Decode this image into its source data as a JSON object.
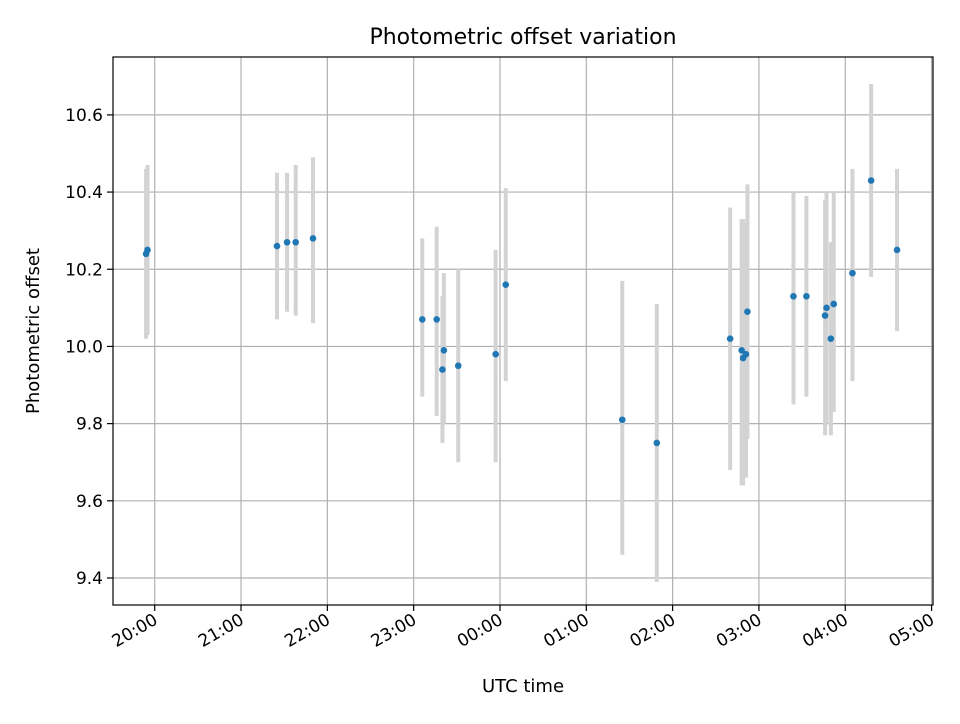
{
  "chart_data": {
    "type": "scatter",
    "title": "Photometric offset variation",
    "xlabel": "UTC time",
    "ylabel": "Photometric offset",
    "x_unit": "UTC time (HH:MM)",
    "xlim": [
      "19:31",
      "05:01"
    ],
    "ylim": [
      9.33,
      10.75
    ],
    "grid": true,
    "colors": {
      "marker": "#1f77b4",
      "errorbar": "#d3d3d3",
      "grid": "#b0b0b0"
    },
    "x_ticks": [
      "20:00",
      "21:00",
      "22:00",
      "23:00",
      "00:00",
      "01:00",
      "02:00",
      "03:00",
      "04:00",
      "05:00"
    ],
    "y_ticks": [
      "9.4",
      "9.6",
      "9.8",
      "10.0",
      "10.2",
      "10.4",
      "10.6"
    ],
    "y_tick_values": [
      9.4,
      9.6,
      9.8,
      10.0,
      10.2,
      10.4,
      10.6
    ],
    "points": [
      {
        "x": "19:54",
        "y": 10.24,
        "lo": 10.02,
        "hi": 10.46
      },
      {
        "x": "19:55",
        "y": 10.25,
        "lo": 10.03,
        "hi": 10.47
      },
      {
        "x": "21:25",
        "y": 10.26,
        "lo": 10.07,
        "hi": 10.45
      },
      {
        "x": "21:32",
        "y": 10.27,
        "lo": 10.09,
        "hi": 10.45
      },
      {
        "x": "21:38",
        "y": 10.27,
        "lo": 10.08,
        "hi": 10.47
      },
      {
        "x": "21:50",
        "y": 10.28,
        "lo": 10.06,
        "hi": 10.49
      },
      {
        "x": "23:06",
        "y": 10.07,
        "lo": 9.87,
        "hi": 10.28
      },
      {
        "x": "23:16",
        "y": 10.07,
        "lo": 9.82,
        "hi": 10.31
      },
      {
        "x": "23:20",
        "y": 9.94,
        "lo": 9.75,
        "hi": 10.13
      },
      {
        "x": "23:21",
        "y": 9.99,
        "lo": 9.8,
        "hi": 10.19
      },
      {
        "x": "23:31",
        "y": 9.95,
        "lo": 9.7,
        "hi": 10.2
      },
      {
        "x": "23:57",
        "y": 9.98,
        "lo": 9.7,
        "hi": 10.25
      },
      {
        "x": "00:04",
        "y": 10.16,
        "lo": 9.91,
        "hi": 10.41
      },
      {
        "x": "01:25",
        "y": 9.81,
        "lo": 9.46,
        "hi": 10.17
      },
      {
        "x": "01:49",
        "y": 9.75,
        "lo": 9.39,
        "hi": 10.11
      },
      {
        "x": "02:40",
        "y": 10.02,
        "lo": 9.68,
        "hi": 10.36
      },
      {
        "x": "02:48",
        "y": 9.99,
        "lo": 9.64,
        "hi": 10.33
      },
      {
        "x": "02:49",
        "y": 9.97,
        "lo": 9.64,
        "hi": 10.33
      },
      {
        "x": "02:51",
        "y": 9.98,
        "lo": 9.66,
        "hi": 10.32
      },
      {
        "x": "02:52",
        "y": 10.09,
        "lo": 9.76,
        "hi": 10.42
      },
      {
        "x": "03:24",
        "y": 10.13,
        "lo": 9.85,
        "hi": 10.4
      },
      {
        "x": "03:33",
        "y": 10.13,
        "lo": 9.87,
        "hi": 10.39
      },
      {
        "x": "03:46",
        "y": 10.08,
        "lo": 9.77,
        "hi": 10.38
      },
      {
        "x": "03:47",
        "y": 10.1,
        "lo": 9.8,
        "hi": 10.4
      },
      {
        "x": "03:50",
        "y": 10.02,
        "lo": 9.77,
        "hi": 10.27
      },
      {
        "x": "03:52",
        "y": 10.11,
        "lo": 9.83,
        "hi": 10.4
      },
      {
        "x": "04:05",
        "y": 10.19,
        "lo": 9.91,
        "hi": 10.46
      },
      {
        "x": "04:18",
        "y": 10.43,
        "lo": 10.18,
        "hi": 10.68
      },
      {
        "x": "04:36",
        "y": 10.25,
        "lo": 10.04,
        "hi": 10.46
      }
    ]
  }
}
